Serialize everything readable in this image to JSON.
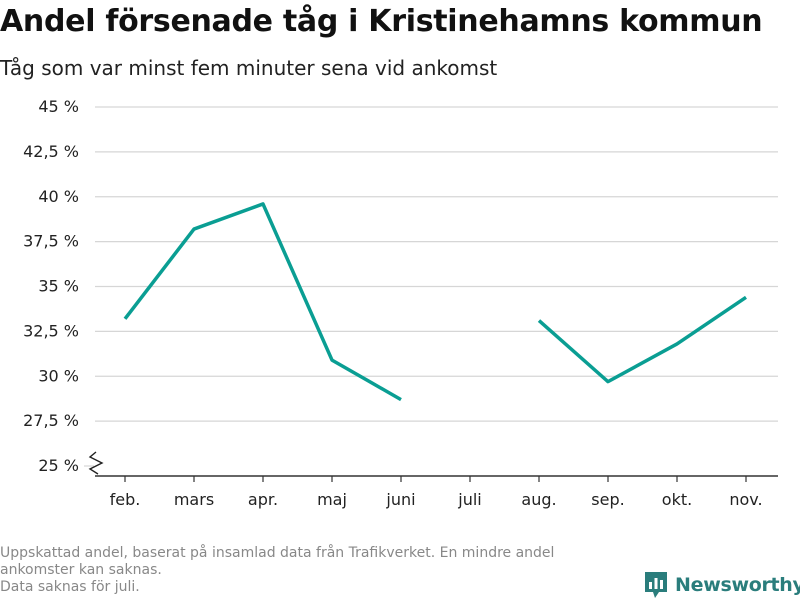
{
  "title": "Andel försenade tåg i Kristinehamns kommun",
  "subtitle": "Tåg som var minst fem minuter sena vid ankomst",
  "footnote": {
    "line1": "Uppskattad andel, baserat på insamlad data från Trafikverket. En mindre andel",
    "line2": "ankomster kan saknas.",
    "line3": "Data saknas för juli."
  },
  "brand": {
    "name": "Newsworthy",
    "icon": "newsworthy-logo-icon",
    "color": "#2a7d7c"
  },
  "chart_data": {
    "type": "line",
    "categories": [
      "feb.",
      "mars",
      "apr.",
      "maj",
      "juni",
      "juli",
      "aug.",
      "sep.",
      "okt.",
      "nov."
    ],
    "series": [
      {
        "values": [
          33.2,
          38.2,
          39.6,
          30.9,
          28.7,
          null,
          33.1,
          29.7,
          31.8,
          34.4
        ],
        "color": "#0a9e93"
      }
    ],
    "y_ticks": [
      25,
      27.5,
      30,
      32.5,
      35,
      37.5,
      40,
      42.5,
      45
    ],
    "y_tick_labels": [
      "25 %",
      "27,5 %",
      "30 %",
      "32,5 %",
      "35 %",
      "37,5 %",
      "40 %",
      "42,5 %",
      "45 %"
    ],
    "ylim": [
      25,
      45
    ],
    "y_axis_break": true,
    "grid": true,
    "xlabel": "",
    "ylabel": "",
    "title": "Andel försenade tåg i Kristinehamns kommun"
  }
}
